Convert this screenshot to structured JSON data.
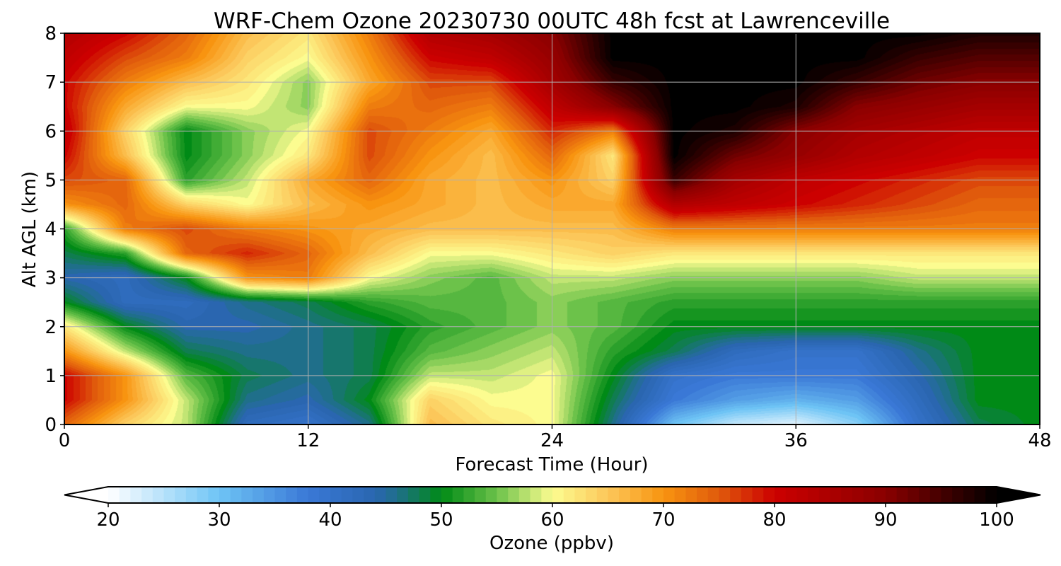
{
  "chart_data": {
    "type": "heatmap",
    "title": "WRF-Chem Ozone  20230730 00UTC 48h fcst at Lawrenceville",
    "xlabel": "Forecast Time (Hour)",
    "ylabel": "Alt AGL (km)",
    "xlim": [
      0,
      48
    ],
    "ylim": [
      0,
      8
    ],
    "xticks": [
      0,
      12,
      24,
      36,
      48
    ],
    "yticks": [
      0,
      1,
      2,
      3,
      4,
      5,
      6,
      7,
      8
    ],
    "grid": true,
    "x_hours": [
      0,
      3,
      6,
      9,
      12,
      15,
      18,
      21,
      24,
      27,
      30,
      33,
      36,
      39,
      42,
      45,
      48
    ],
    "y_km": [
      0,
      0.5,
      1,
      1.5,
      2,
      2.5,
      3,
      3.5,
      4,
      4.5,
      5,
      5.5,
      6,
      6.5,
      7,
      7.5,
      8
    ],
    "values_ppbv": [
      [
        74,
        64,
        58,
        42,
        40,
        46,
        66,
        62,
        60,
        46,
        30,
        24,
        22,
        28,
        40,
        48,
        50
      ],
      [
        80,
        70,
        58,
        46,
        44,
        50,
        64,
        60,
        60,
        48,
        38,
        34,
        32,
        34,
        42,
        50,
        50
      ],
      [
        80,
        70,
        54,
        48,
        46,
        48,
        58,
        58,
        60,
        50,
        40,
        38,
        38,
        38,
        44,
        50,
        50
      ],
      [
        70,
        58,
        48,
        46,
        46,
        48,
        54,
        56,
        58,
        52,
        48,
        42,
        40,
        40,
        46,
        50,
        50
      ],
      [
        62,
        50,
        44,
        44,
        46,
        48,
        52,
        54,
        56,
        54,
        50,
        50,
        50,
        50,
        50,
        50,
        50
      ],
      [
        50,
        42,
        42,
        46,
        48,
        52,
        54,
        54,
        56,
        54,
        52,
        52,
        52,
        52,
        52,
        52,
        52
      ],
      [
        44,
        42,
        50,
        70,
        72,
        60,
        56,
        54,
        58,
        58,
        56,
        56,
        56,
        56,
        58,
        58,
        58
      ],
      [
        48,
        52,
        74,
        78,
        74,
        66,
        60,
        60,
        62,
        64,
        62,
        62,
        62,
        62,
        62,
        62,
        62
      ],
      [
        52,
        72,
        76,
        72,
        70,
        68,
        66,
        66,
        66,
        66,
        72,
        72,
        72,
        72,
        72,
        72,
        72
      ],
      [
        70,
        74,
        64,
        60,
        66,
        70,
        68,
        66,
        68,
        68,
        84,
        82,
        80,
        78,
        76,
        74,
        74
      ],
      [
        76,
        74,
        52,
        58,
        68,
        74,
        68,
        66,
        70,
        64,
        96,
        86,
        82,
        80,
        78,
        76,
        76
      ],
      [
        80,
        66,
        50,
        56,
        62,
        76,
        70,
        66,
        74,
        62,
        100,
        92,
        88,
        84,
        82,
        80,
        80
      ],
      [
        82,
        64,
        50,
        56,
        60,
        76,
        72,
        68,
        78,
        72,
        100,
        98,
        90,
        86,
        84,
        82,
        82
      ],
      [
        80,
        68,
        60,
        60,
        56,
        72,
        74,
        72,
        82,
        90,
        100,
        100,
        98,
        90,
        88,
        86,
        86
      ],
      [
        80,
        72,
        66,
        62,
        56,
        68,
        76,
        76,
        86,
        96,
        100,
        100,
        100,
        96,
        92,
        90,
        90
      ],
      [
        82,
        76,
        72,
        64,
        60,
        70,
        80,
        82,
        88,
        100,
        100,
        100,
        100,
        100,
        96,
        94,
        94
      ],
      [
        84,
        80,
        74,
        66,
        62,
        72,
        84,
        86,
        90,
        100,
        100,
        100,
        100,
        100,
        100,
        98,
        98
      ]
    ],
    "colorbar": {
      "label": "Ozone  (ppbv)",
      "min": 20,
      "max": 100,
      "ticks": [
        20,
        30,
        40,
        50,
        60,
        70,
        80,
        90,
        100
      ],
      "extend": "both",
      "color_stops": [
        {
          "v": 20,
          "c": "#ffffff"
        },
        {
          "v": 30,
          "c": "#6ec4f5"
        },
        {
          "v": 38,
          "c": "#3a78d6"
        },
        {
          "v": 44,
          "c": "#2a66b0"
        },
        {
          "v": 46,
          "c": "#1f6f8a"
        },
        {
          "v": 50,
          "c": "#008a16"
        },
        {
          "v": 55,
          "c": "#6cc24a"
        },
        {
          "v": 60,
          "c": "#fcfc90"
        },
        {
          "v": 65,
          "c": "#fcc75a"
        },
        {
          "v": 70,
          "c": "#f89410"
        },
        {
          "v": 75,
          "c": "#e05a0c"
        },
        {
          "v": 80,
          "c": "#cc0000"
        },
        {
          "v": 90,
          "c": "#8a0000"
        },
        {
          "v": 100,
          "c": "#000000"
        }
      ]
    }
  }
}
